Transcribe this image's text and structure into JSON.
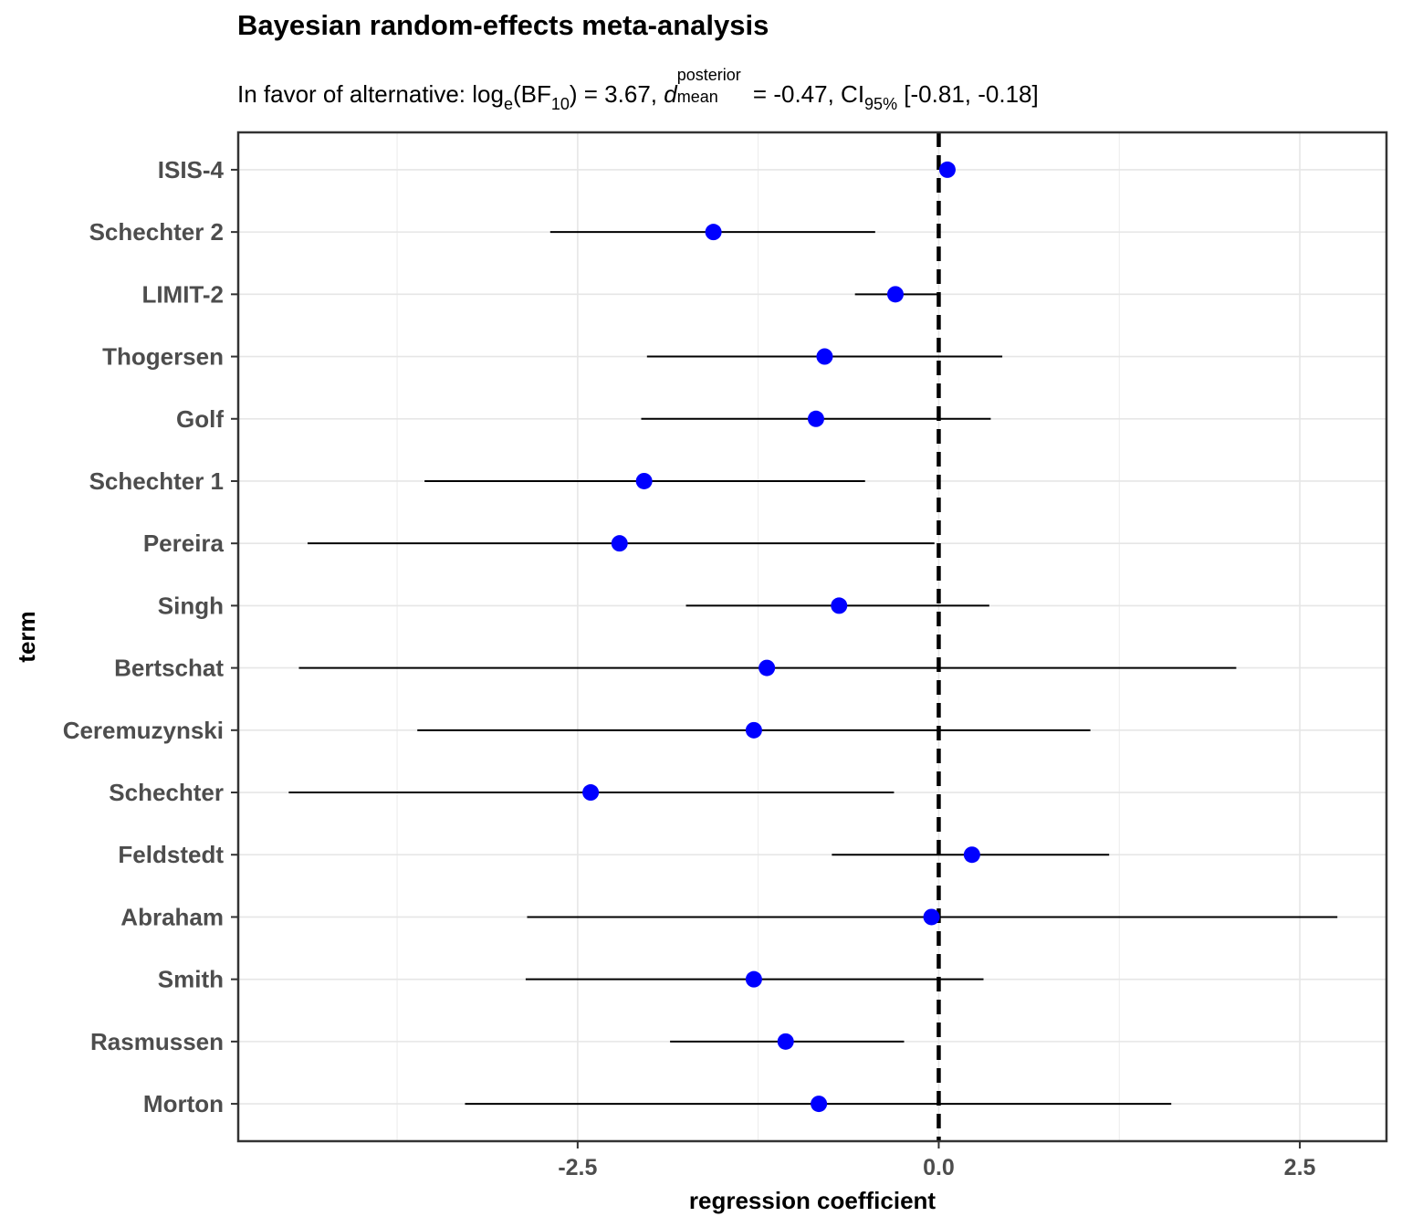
{
  "title": "Bayesian random-effects meta-analysis",
  "subtitle": {
    "prefix": "In favor of alternative: log",
    "log_base": "e",
    "bf_open": "(BF",
    "bf_sub": "10",
    "bf_value": ") = 3.67, ",
    "d_symbol": "d",
    "d_sup": "posterior",
    "d_sub": "mean",
    "d_value": " = -0.47, CI",
    "ci_sub": "95%",
    "ci_value": " [-0.81, -0.18]"
  },
  "chart_data": {
    "type": "scatter",
    "subtype": "forest",
    "xlabel": "regression coefficient",
    "ylabel": "term",
    "xlim": [
      -4.85,
      3.1
    ],
    "x_ticks": [
      -2.5,
      0.0,
      2.5
    ],
    "x_tick_labels": [
      "-2.5",
      "0.0",
      "2.5"
    ],
    "reference_line": 0.0,
    "grid": true,
    "point_color": "#0000ff",
    "terms": [
      {
        "label": "ISIS-4",
        "estimate": 0.06,
        "lower": 0.06,
        "upper": 0.06
      },
      {
        "label": "Schechter 2",
        "estimate": -1.56,
        "lower": -2.69,
        "upper": -0.44
      },
      {
        "label": "LIMIT-2",
        "estimate": -0.3,
        "lower": -0.58,
        "upper": 0.0
      },
      {
        "label": "Thogersen",
        "estimate": -0.79,
        "lower": -2.02,
        "upper": 0.44
      },
      {
        "label": "Golf",
        "estimate": -0.85,
        "lower": -2.06,
        "upper": 0.36
      },
      {
        "label": "Schechter 1",
        "estimate": -2.04,
        "lower": -3.56,
        "upper": -0.51
      },
      {
        "label": "Pereira",
        "estimate": -2.21,
        "lower": -4.37,
        "upper": -0.03
      },
      {
        "label": "Singh",
        "estimate": -0.69,
        "lower": -1.75,
        "upper": 0.35
      },
      {
        "label": "Bertschat",
        "estimate": -1.19,
        "lower": -4.43,
        "upper": 2.06
      },
      {
        "label": "Ceremuzynski",
        "estimate": -1.28,
        "lower": -3.61,
        "upper": 1.05
      },
      {
        "label": "Schechter",
        "estimate": -2.41,
        "lower": -4.5,
        "upper": -0.31
      },
      {
        "label": "Feldstedt",
        "estimate": 0.23,
        "lower": -0.74,
        "upper": 1.18
      },
      {
        "label": "Abraham",
        "estimate": -0.05,
        "lower": -2.85,
        "upper": 2.76
      },
      {
        "label": "Smith",
        "estimate": -1.28,
        "lower": -2.86,
        "upper": 0.31
      },
      {
        "label": "Rasmussen",
        "estimate": -1.06,
        "lower": -1.86,
        "upper": -0.24
      },
      {
        "label": "Morton",
        "estimate": -0.83,
        "lower": -3.28,
        "upper": 1.61
      }
    ]
  }
}
